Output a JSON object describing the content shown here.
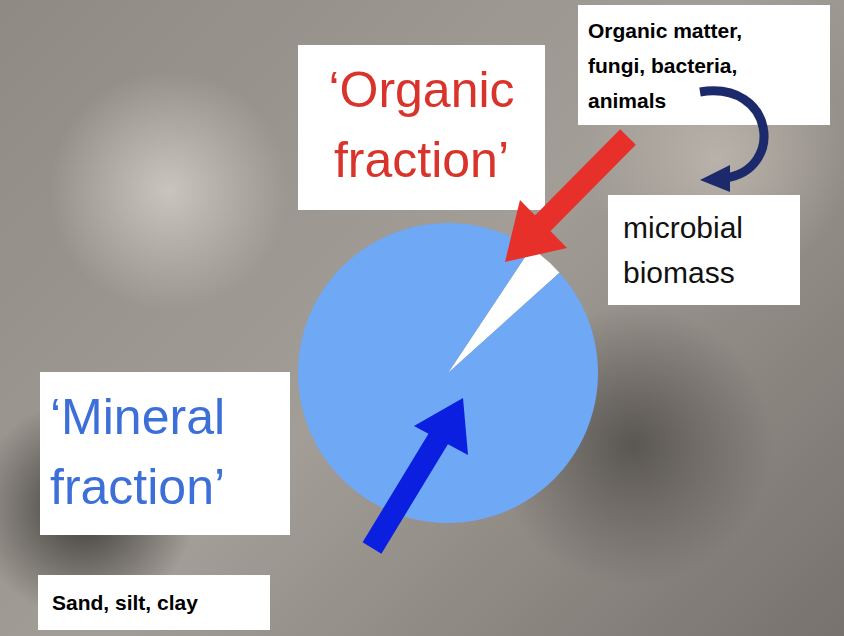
{
  "chart_data": {
    "type": "pie",
    "categories": [
      "‘Organic fraction’",
      "‘Mineral fraction’"
    ],
    "values": [
      4,
      96
    ],
    "colors": [
      "#ffffff",
      "#6fa8f5"
    ],
    "label_colors": [
      "#d9342b",
      "#3d6fd8"
    ],
    "annotations": {
      "organic_sources": "Organic matter, fungi, bacteria, animals",
      "microbial": "microbial biomass",
      "mineral_sources": "Sand, silt, clay"
    }
  }
}
